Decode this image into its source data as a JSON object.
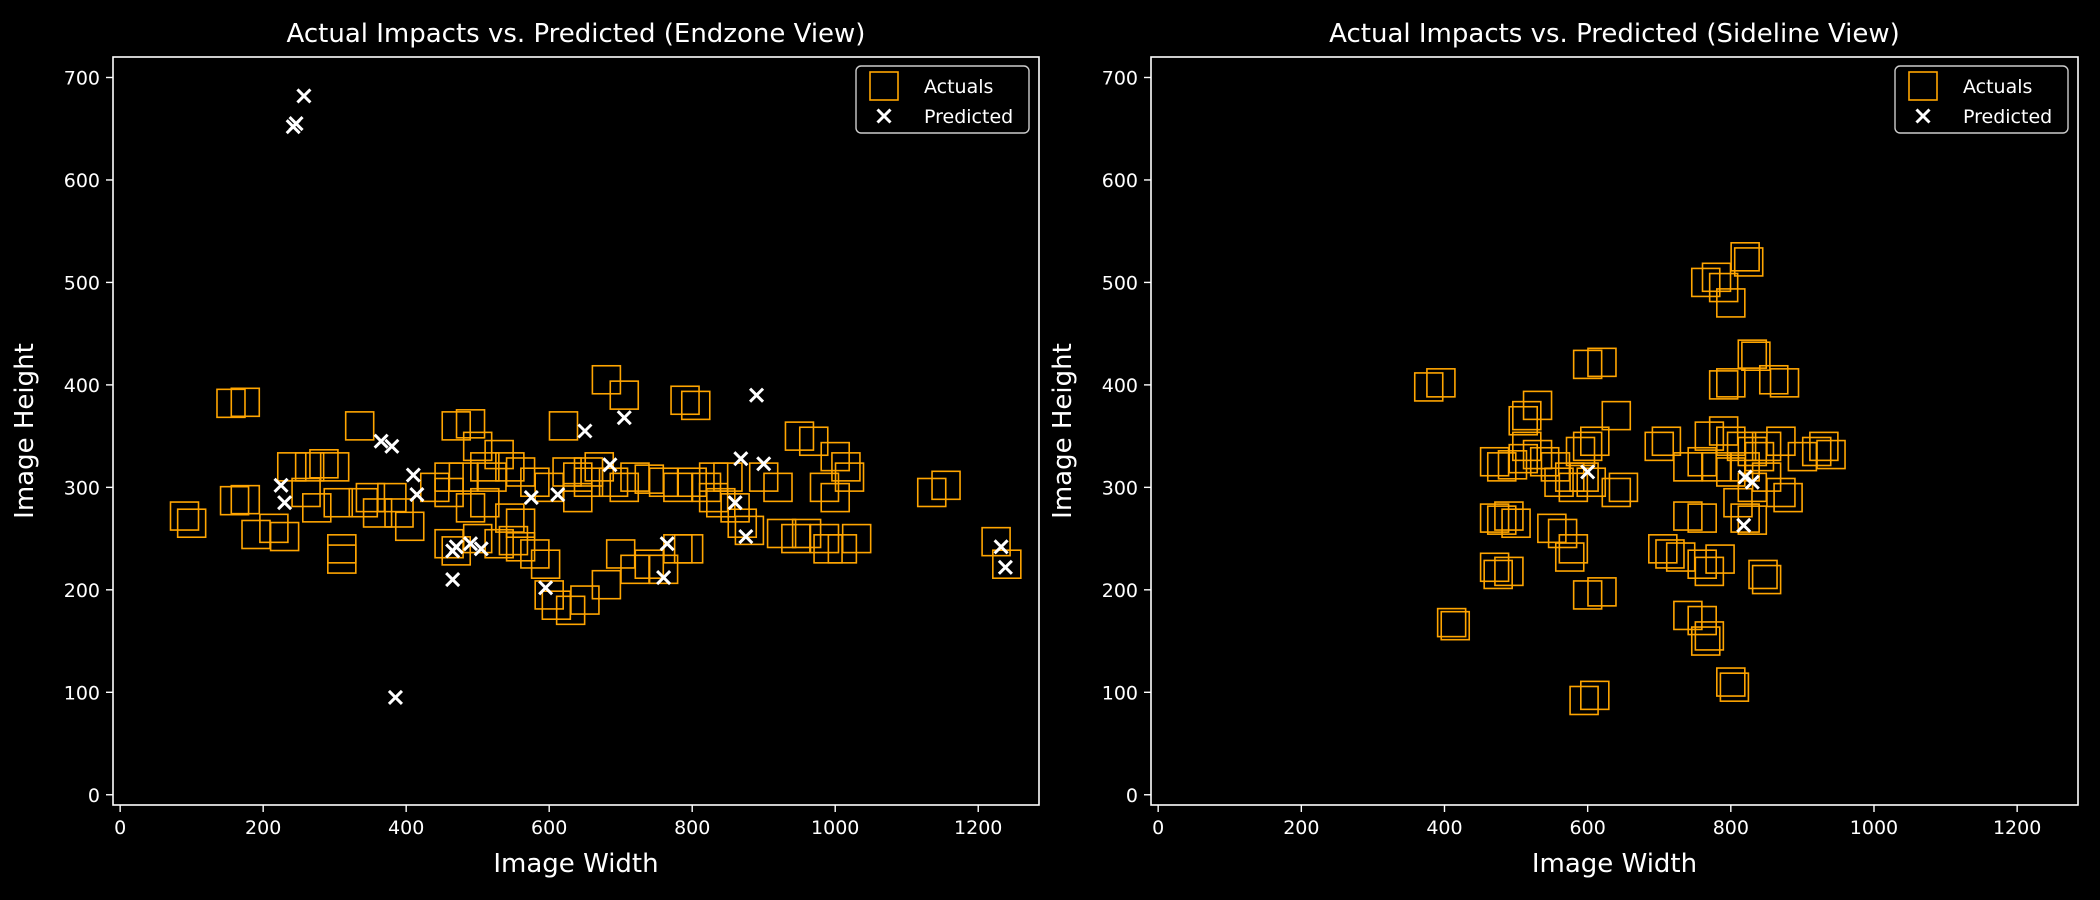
{
  "chart_data": [
    {
      "type": "scatter",
      "title": "Actual Impacts vs. Predicted (Endzone View)",
      "xlabel": "Image Width",
      "ylabel": "Image Height",
      "xlim": [
        -10,
        1285
      ],
      "ylim": [
        -10,
        720
      ],
      "xticks": [
        0,
        200,
        400,
        600,
        800,
        1000,
        1200
      ],
      "yticks": [
        0,
        100,
        200,
        300,
        400,
        500,
        600,
        700
      ],
      "legend_position": "top-right",
      "series": [
        {
          "name": "Actuals",
          "marker": "open-square",
          "color": "#FFA500",
          "points": [
            [
              90,
              272
            ],
            [
              100,
              265
            ],
            [
              155,
              382
            ],
            [
              175,
              383
            ],
            [
              160,
              287
            ],
            [
              175,
              288
            ],
            [
              190,
              254
            ],
            [
              215,
              260
            ],
            [
              230,
              252
            ],
            [
              240,
              320
            ],
            [
              265,
              320
            ],
            [
              285,
              323
            ],
            [
              300,
              320
            ],
            [
              310,
              240
            ],
            [
              310,
              230
            ],
            [
              260,
              295
            ],
            [
              275,
              280
            ],
            [
              305,
              285
            ],
            [
              335,
              360
            ],
            [
              340,
              285
            ],
            [
              350,
              290
            ],
            [
              360,
              275
            ],
            [
              380,
              290
            ],
            [
              390,
              275
            ],
            [
              405,
              262
            ],
            [
              440,
              300
            ],
            [
              460,
              295
            ],
            [
              470,
              360
            ],
            [
              490,
              362
            ],
            [
              460,
              310
            ],
            [
              480,
              310
            ],
            [
              500,
              340
            ],
            [
              510,
              320
            ],
            [
              520,
              310
            ],
            [
              530,
              332
            ],
            [
              545,
              320
            ],
            [
              560,
              315
            ],
            [
              580,
              305
            ],
            [
              490,
              280
            ],
            [
              510,
              285
            ],
            [
              545,
              270
            ],
            [
              560,
              265
            ],
            [
              460,
              245
            ],
            [
              470,
              238
            ],
            [
              500,
              250
            ],
            [
              530,
              245
            ],
            [
              550,
              248
            ],
            [
              560,
              242
            ],
            [
              580,
              235
            ],
            [
              595,
              225
            ],
            [
              620,
              360
            ],
            [
              625,
              315
            ],
            [
              640,
              310
            ],
            [
              655,
              315
            ],
            [
              670,
              320
            ],
            [
              690,
              305
            ],
            [
              705,
              300
            ],
            [
              720,
              310
            ],
            [
              740,
              308
            ],
            [
              760,
              305
            ],
            [
              780,
              300
            ],
            [
              800,
              305
            ],
            [
              820,
              300
            ],
            [
              830,
              290
            ],
            [
              840,
              285
            ],
            [
              860,
              280
            ],
            [
              870,
              265
            ],
            [
              880,
              258
            ],
            [
              600,
              195
            ],
            [
              610,
              185
            ],
            [
              630,
              180
            ],
            [
              650,
              190
            ],
            [
              680,
              205
            ],
            [
              700,
              235
            ],
            [
              720,
              220
            ],
            [
              740,
              225
            ],
            [
              760,
              220
            ],
            [
              780,
              240
            ],
            [
              795,
              240
            ],
            [
              680,
              405
            ],
            [
              705,
              390
            ],
            [
              790,
              385
            ],
            [
              805,
              380
            ],
            [
              830,
              310
            ],
            [
              850,
              310
            ],
            [
              900,
              310
            ],
            [
              920,
              300
            ],
            [
              950,
              350
            ],
            [
              970,
              345
            ],
            [
              985,
              300
            ],
            [
              1000,
              290
            ],
            [
              1000,
              330
            ],
            [
              1015,
              320
            ],
            [
              1020,
              310
            ],
            [
              925,
              255
            ],
            [
              945,
              250
            ],
            [
              960,
              255
            ],
            [
              985,
              250
            ],
            [
              990,
              240
            ],
            [
              1010,
              240
            ],
            [
              1030,
              250
            ],
            [
              1135,
              295
            ],
            [
              1155,
              302
            ],
            [
              1225,
              247
            ],
            [
              1240,
              225
            ],
            [
              600,
              300
            ],
            [
              640,
              290
            ],
            [
              655,
              305
            ]
          ]
        },
        {
          "name": "Predicted",
          "marker": "x",
          "color": "#ffffff",
          "points": [
            [
              242,
              652
            ],
            [
              246,
              655
            ],
            [
              257,
              682
            ],
            [
              225,
              302
            ],
            [
              230,
              285
            ],
            [
              365,
              345
            ],
            [
              380,
              340
            ],
            [
              410,
              312
            ],
            [
              415,
              293
            ],
            [
              385,
              95
            ],
            [
              465,
              238
            ],
            [
              465,
              210
            ],
            [
              470,
              242
            ],
            [
              490,
              245
            ],
            [
              505,
              240
            ],
            [
              575,
              290
            ],
            [
              595,
              202
            ],
            [
              612,
              293
            ],
            [
              650,
              355
            ],
            [
              685,
              322
            ],
            [
              705,
              368
            ],
            [
              760,
              212
            ],
            [
              765,
              245
            ],
            [
              860,
              285
            ],
            [
              868,
              328
            ],
            [
              875,
              252
            ],
            [
              890,
              390
            ],
            [
              900,
              323
            ],
            [
              1232,
              242
            ],
            [
              1238,
              222
            ]
          ]
        }
      ]
    },
    {
      "type": "scatter",
      "title": "Actual Impacts vs. Predicted (Sideline View)",
      "xlabel": "Image Width",
      "ylabel": "Image Height",
      "xlim": [
        -10,
        1285
      ],
      "ylim": [
        -10,
        720
      ],
      "xticks": [
        0,
        200,
        400,
        600,
        800,
        1000,
        1200
      ],
      "yticks": [
        0,
        100,
        200,
        300,
        400,
        500,
        600,
        700
      ],
      "legend_position": "top-right",
      "series": [
        {
          "name": "Actuals",
          "marker": "open-square",
          "color": "#FFA500",
          "points": [
            [
              378,
              398
            ],
            [
              395,
              402
            ],
            [
              410,
              168
            ],
            [
              415,
              165
            ],
            [
              470,
              270
            ],
            [
              480,
              268
            ],
            [
              490,
              272
            ],
            [
              500,
              265
            ],
            [
              470,
              325
            ],
            [
              480,
              320
            ],
            [
              495,
              322
            ],
            [
              510,
              328
            ],
            [
              470,
              222
            ],
            [
              475,
              215
            ],
            [
              490,
              218
            ],
            [
              510,
              365
            ],
            [
              515,
              370
            ],
            [
              530,
              380
            ],
            [
              515,
              340
            ],
            [
              530,
              332
            ],
            [
              540,
              325
            ],
            [
              555,
              320
            ],
            [
              550,
              260
            ],
            [
              565,
              255
            ],
            [
              580,
              240
            ],
            [
              575,
              232
            ],
            [
              560,
              305
            ],
            [
              575,
              310
            ],
            [
              580,
              300
            ],
            [
              595,
              310
            ],
            [
              605,
              305
            ],
            [
              590,
              335
            ],
            [
              600,
              340
            ],
            [
              610,
              345
            ],
            [
              600,
              420
            ],
            [
              620,
              422
            ],
            [
              600,
              195
            ],
            [
              620,
              198
            ],
            [
              595,
              92
            ],
            [
              610,
              97
            ],
            [
              640,
              370
            ],
            [
              640,
              295
            ],
            [
              650,
              300
            ],
            [
              700,
              340
            ],
            [
              710,
              345
            ],
            [
              705,
              240
            ],
            [
              715,
              235
            ],
            [
              730,
              232
            ],
            [
              740,
              272
            ],
            [
              760,
              270
            ],
            [
              740,
              320
            ],
            [
              760,
              325
            ],
            [
              740,
              175
            ],
            [
              760,
              170
            ],
            [
              765,
              150
            ],
            [
              770,
              155
            ],
            [
              760,
              225
            ],
            [
              770,
              218
            ],
            [
              785,
              230
            ],
            [
              770,
              350
            ],
            [
              790,
              355
            ],
            [
              800,
              345
            ],
            [
              815,
              340
            ],
            [
              830,
              335
            ],
            [
              840,
              330
            ],
            [
              850,
              340
            ],
            [
              870,
              345
            ],
            [
              780,
              320
            ],
            [
              800,
              315
            ],
            [
              820,
              320
            ],
            [
              830,
              300
            ],
            [
              850,
              310
            ],
            [
              790,
              400
            ],
            [
              800,
              402
            ],
            [
              830,
              430
            ],
            [
              835,
              428
            ],
            [
              860,
              405
            ],
            [
              875,
              402
            ],
            [
              790,
              495
            ],
            [
              800,
              480
            ],
            [
              765,
              500
            ],
            [
              780,
              505
            ],
            [
              820,
              525
            ],
            [
              825,
              520
            ],
            [
              800,
              110
            ],
            [
              805,
              105
            ],
            [
              820,
              270
            ],
            [
              830,
              268
            ],
            [
              810,
              285
            ],
            [
              845,
              215
            ],
            [
              850,
              210
            ],
            [
              870,
              295
            ],
            [
              880,
              290
            ],
            [
              900,
              330
            ],
            [
              920,
              335
            ],
            [
              930,
              340
            ],
            [
              940,
              332
            ]
          ]
        },
        {
          "name": "Predicted",
          "marker": "x",
          "color": "#ffffff",
          "points": [
            [
              600,
              315
            ],
            [
              820,
              310
            ],
            [
              830,
              305
            ],
            [
              818,
              263
            ]
          ]
        }
      ]
    }
  ]
}
